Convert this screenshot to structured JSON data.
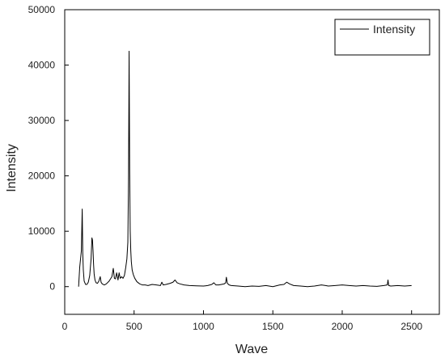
{
  "chart_data": {
    "type": "line",
    "title": "",
    "xlabel": "Wave",
    "ylabel": "Intensity",
    "xlim": [
      0,
      2700
    ],
    "ylim": [
      -5000,
      50000
    ],
    "xticks": [
      0,
      500,
      1000,
      1500,
      2000,
      2500
    ],
    "yticks": [
      0,
      10000,
      20000,
      30000,
      40000,
      50000
    ],
    "grid": false,
    "legend": {
      "position": "top-right",
      "entries": [
        "Intensity"
      ]
    },
    "series": [
      {
        "name": "Intensity",
        "color": "#000000",
        "x": [
          100,
          108,
          114,
          120,
          126,
          130,
          134,
          140,
          150,
          160,
          170,
          180,
          190,
          196,
          200,
          204,
          208,
          212,
          218,
          226,
          236,
          246,
          256,
          262,
          270,
          285,
          300,
          320,
          340,
          350,
          358,
          366,
          374,
          384,
          392,
          400,
          410,
          420,
          430,
          440,
          448,
          455,
          460,
          464,
          468,
          472,
          476,
          480,
          486,
          494,
          505,
          520,
          540,
          560,
          580,
          600,
          630,
          660,
          690,
          700,
          710,
          730,
          760,
          780,
          795,
          810,
          830,
          860,
          900,
          950,
          1000,
          1030,
          1060,
          1075,
          1090,
          1110,
          1130,
          1150,
          1160,
          1165,
          1172,
          1185,
          1200,
          1250,
          1300,
          1350,
          1400,
          1450,
          1500,
          1550,
          1580,
          1600,
          1620,
          1650,
          1700,
          1750,
          1800,
          1850,
          1880,
          1900,
          1950,
          2000,
          2050,
          2100,
          2150,
          2200,
          2250,
          2300,
          2325,
          2330,
          2335,
          2350,
          2400,
          2450,
          2500
        ],
        "values": [
          0,
          3500,
          5000,
          6500,
          14000,
          6000,
          3000,
          1000,
          400,
          400,
          800,
          2000,
          5000,
          8800,
          8400,
          6500,
          4000,
          2300,
          1200,
          700,
          600,
          1000,
          1800,
          800,
          500,
          300,
          500,
          1000,
          1800,
          3300,
          1500,
          1400,
          2500,
          1200,
          2500,
          1500,
          1800,
          1500,
          2000,
          3500,
          5000,
          8000,
          20000,
          42500,
          21000,
          10000,
          6500,
          4500,
          3000,
          2200,
          1500,
          900,
          500,
          300,
          300,
          200,
          400,
          300,
          200,
          800,
          300,
          400,
          600,
          800,
          1200,
          700,
          500,
          300,
          200,
          150,
          100,
          200,
          400,
          700,
          300,
          300,
          400,
          500,
          700,
          1700,
          600,
          300,
          200,
          100,
          0,
          100,
          50,
          200,
          0,
          300,
          400,
          800,
          500,
          200,
          100,
          0,
          100,
          300,
          200,
          100,
          200,
          300,
          200,
          100,
          200,
          100,
          50,
          200,
          300,
          1200,
          200,
          100,
          200,
          100,
          200
        ]
      }
    ]
  }
}
